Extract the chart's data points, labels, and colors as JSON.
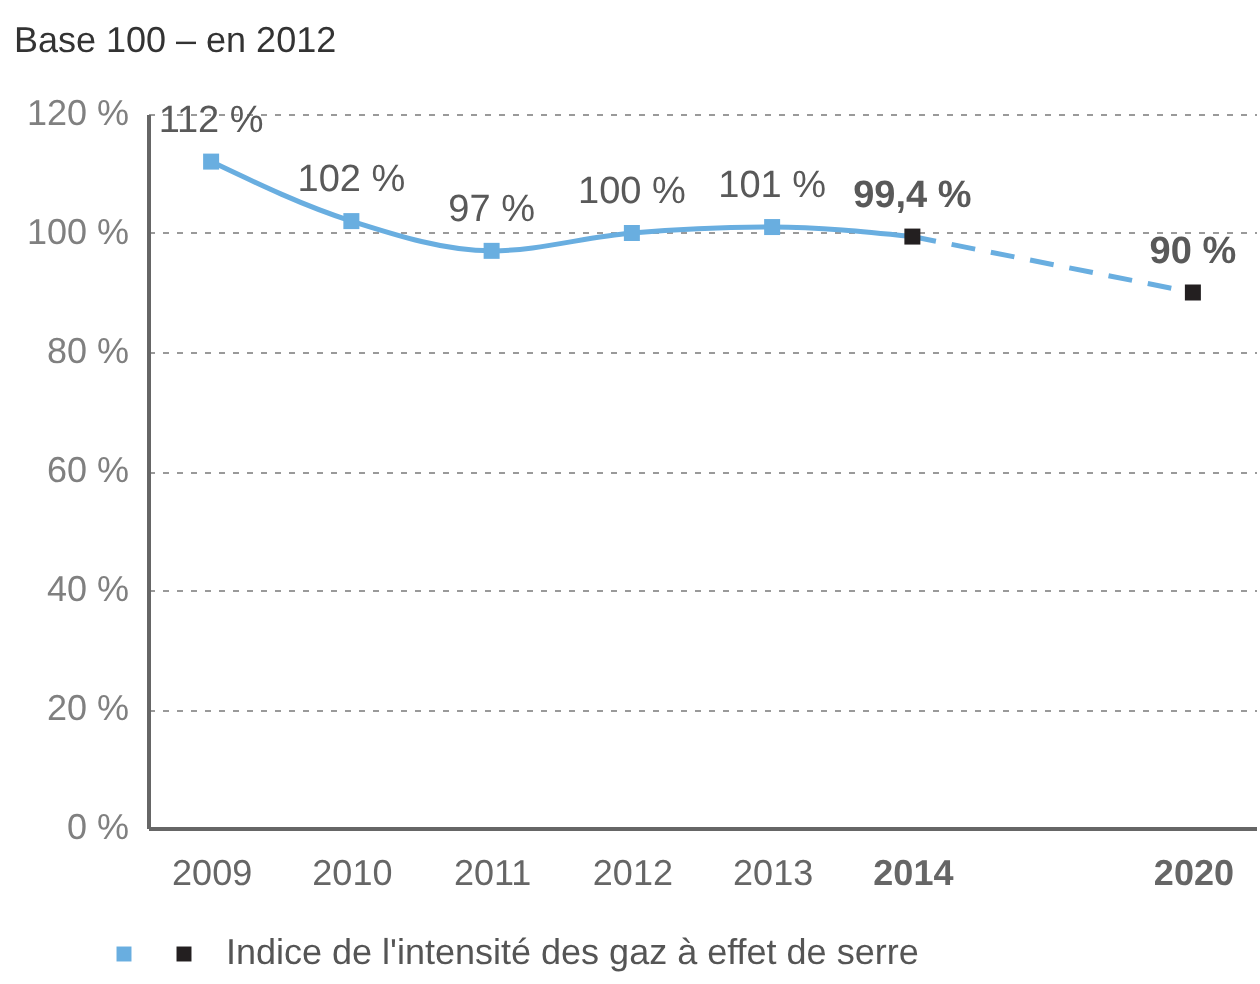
{
  "chart_data": {
    "type": "line",
    "title": "Base 100 – en 2012",
    "categories": [
      "2009",
      "2010",
      "2011",
      "2012",
      "2013",
      "2014",
      null,
      "2020"
    ],
    "series": [
      {
        "name": "Indice de l'intensité des gaz à effet de serre",
        "type": "line",
        "color": "#69aee0",
        "colors": [
          "#69aee0",
          "#69aee0",
          "#69aee0",
          "#69aee0",
          "#69aee0",
          "#231f20",
          null,
          null
        ],
        "values": [
          112,
          102,
          97,
          100,
          101,
          99.4,
          null,
          null
        ],
        "value_labels": [
          "112 %",
          "102 %",
          "97 %",
          "100 %",
          "101 %",
          "99,4 %",
          null,
          null
        ]
      },
      {
        "type": "line",
        "color": "#69aee0",
        "line_style": "dashed",
        "colors": [
          null,
          null,
          null,
          null,
          null,
          null,
          null,
          "#231f20"
        ],
        "values": [
          null,
          null,
          null,
          null,
          null,
          99.4,
          null,
          90
        ],
        "value_labels": [
          null,
          null,
          null,
          null,
          null,
          null,
          null,
          "90 %"
        ]
      }
    ],
    "ylim": [
      0,
      120
    ],
    "yticks": [
      {
        "value": 0,
        "label": "0 %"
      },
      {
        "value": 20,
        "label": "20 %"
      },
      {
        "value": 40,
        "label": "40 %"
      },
      {
        "value": 60,
        "label": "60 %"
      },
      {
        "value": 80,
        "label": "80 %"
      },
      {
        "value": 100,
        "label": "100 %"
      },
      {
        "value": 120,
        "label": "120 %"
      }
    ],
    "grid": "y",
    "legend": "bottom",
    "marker": "square"
  }
}
